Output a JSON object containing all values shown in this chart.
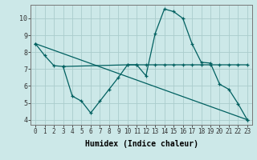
{
  "xlabel": "Humidex (Indice chaleur)",
  "bg_color": "#cce8e8",
  "grid_color": "#aacccc",
  "line_color": "#006060",
  "xlim": [
    -0.5,
    23.5
  ],
  "ylim": [
    3.7,
    10.8
  ],
  "xticks": [
    0,
    1,
    2,
    3,
    4,
    5,
    6,
    7,
    8,
    9,
    10,
    11,
    12,
    13,
    14,
    15,
    16,
    17,
    18,
    19,
    20,
    21,
    22,
    23
  ],
  "yticks": [
    4,
    5,
    6,
    7,
    8,
    9,
    10
  ],
  "line1_x": [
    0,
    1,
    2,
    3,
    10,
    11,
    12,
    13,
    14,
    15,
    16,
    17,
    18,
    19,
    20,
    21,
    22,
    23
  ],
  "line1_y": [
    8.5,
    7.8,
    7.2,
    7.15,
    7.25,
    7.25,
    7.25,
    7.25,
    7.25,
    7.25,
    7.25,
    7.25,
    7.25,
    7.25,
    7.25,
    7.25,
    7.25,
    7.25
  ],
  "line2_x": [
    3,
    4,
    5,
    6,
    7,
    8,
    9,
    10,
    11,
    12,
    13,
    14,
    15,
    16,
    17,
    18,
    19,
    20,
    21,
    22,
    23
  ],
  "line2_y": [
    7.15,
    5.4,
    5.1,
    4.4,
    5.1,
    5.8,
    6.5,
    7.25,
    7.25,
    6.6,
    9.1,
    10.55,
    10.4,
    10.0,
    8.5,
    7.4,
    7.35,
    6.1,
    5.8,
    4.95,
    4.0
  ],
  "line3_x": [
    0,
    23
  ],
  "line3_y": [
    8.5,
    4.0
  ],
  "marker_size": 2.5,
  "line_width": 0.9,
  "tick_fontsize": 5.5,
  "xlabel_fontsize": 7
}
